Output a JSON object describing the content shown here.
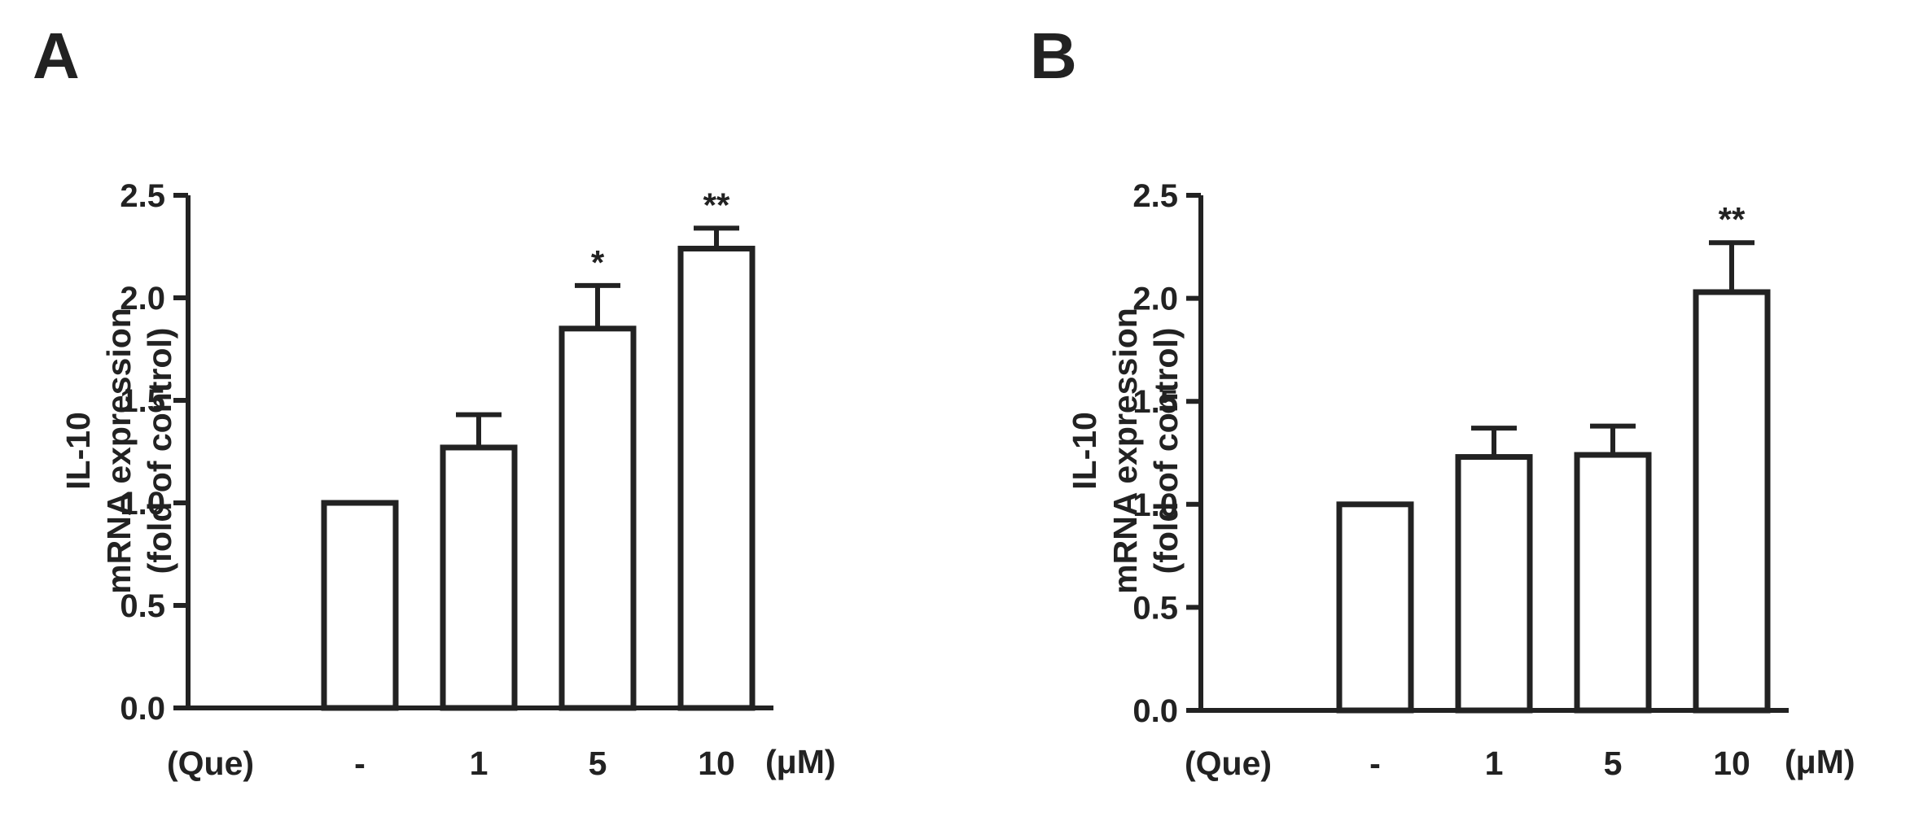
{
  "colors": {
    "ink": "#222222",
    "bar_fill": "#ffffff",
    "background": "#ffffff"
  },
  "chart_data": [
    {
      "type": "bar",
      "panel_label": "A",
      "ylabel_lines": [
        "IL-10",
        "mRNA expression",
        "(fold of control)"
      ],
      "x_prefix": "(Que)",
      "x_unit": "(μM)",
      "categories": [
        "-",
        "1",
        "5",
        "10"
      ],
      "values": [
        1.0,
        1.27,
        1.85,
        2.24
      ],
      "errors": [
        0.0,
        0.16,
        0.21,
        0.1
      ],
      "significance": [
        "",
        "",
        "*",
        "**"
      ],
      "ylim": [
        0,
        2.5
      ],
      "yticks": [
        "0.0",
        "0.5",
        "1.0",
        "1.5",
        "2.0",
        "2.5"
      ],
      "grid": false,
      "legend": "none"
    },
    {
      "type": "bar",
      "panel_label": "B",
      "ylabel_lines": [
        "IL-10",
        "mRNA expression",
        "(fold of control)"
      ],
      "x_prefix": "(Que)",
      "x_unit": "(μM)",
      "categories": [
        "-",
        "1",
        "5",
        "10"
      ],
      "values": [
        1.0,
        1.23,
        1.24,
        2.03
      ],
      "errors": [
        0.0,
        0.14,
        0.14,
        0.24
      ],
      "significance": [
        "",
        "",
        "",
        "**"
      ],
      "ylim": [
        0,
        2.5
      ],
      "yticks": [
        "0.0",
        "0.5",
        "1.0",
        "1.5",
        "2.0",
        "2.5"
      ],
      "grid": false,
      "legend": "none"
    }
  ]
}
